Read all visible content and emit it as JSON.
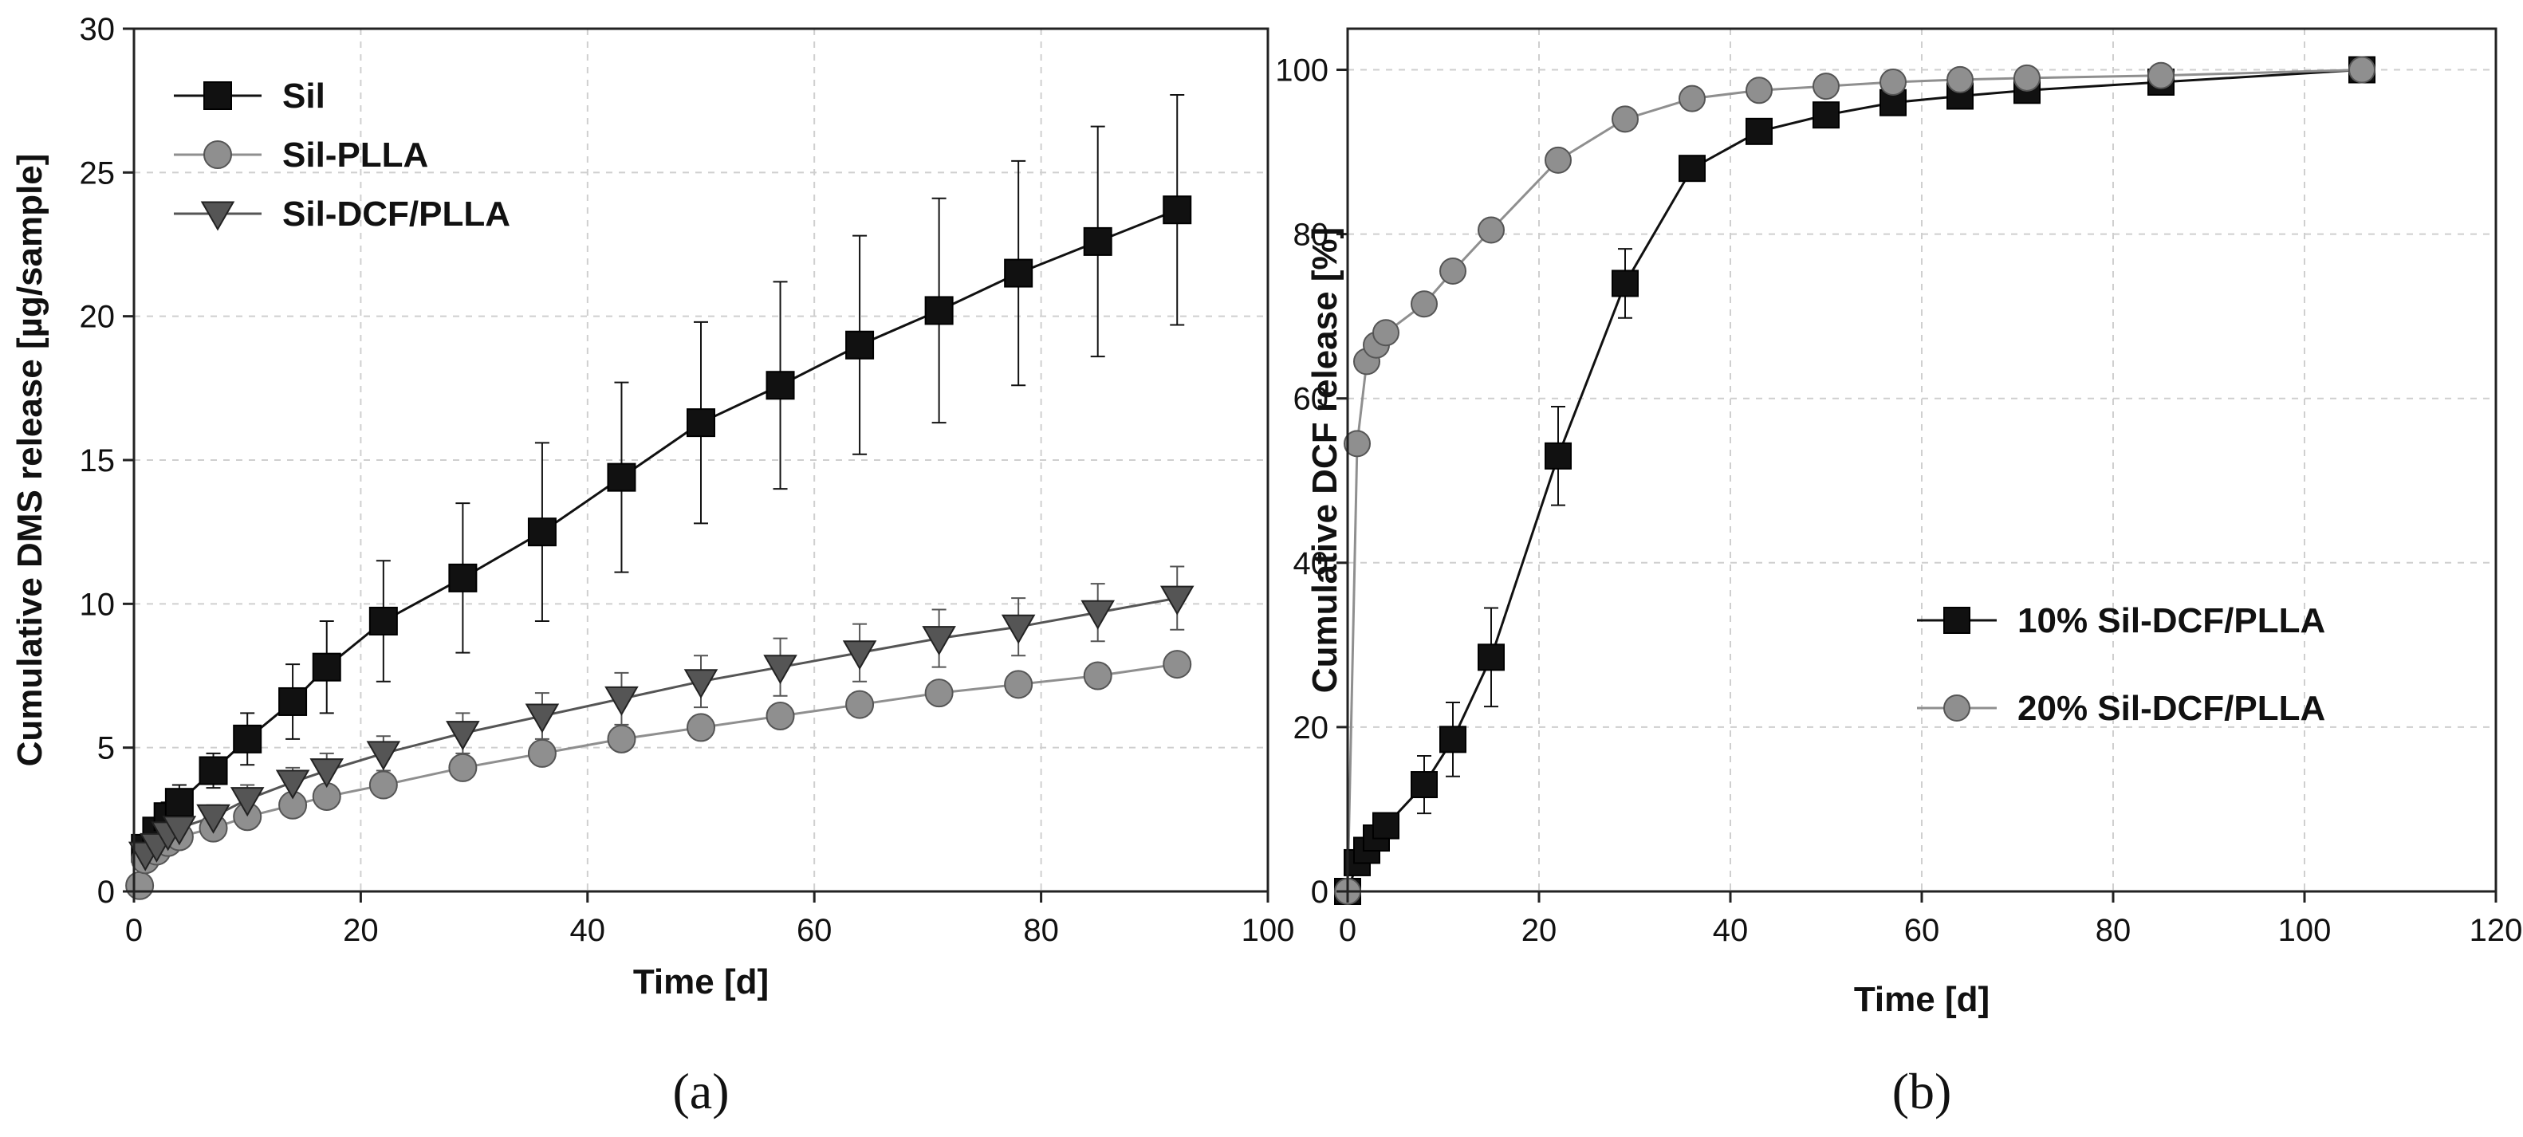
{
  "chart_data": [
    {
      "panel": "(a)",
      "type": "line",
      "xlabel": "Time [d]",
      "ylabel": "Cumulative DMS release [µg/sample]",
      "xlim": [
        0,
        100
      ],
      "ylim": [
        0,
        30
      ],
      "xticks": [
        0,
        20,
        40,
        60,
        80,
        100
      ],
      "yticks": [
        0,
        5,
        10,
        15,
        20,
        25,
        30
      ],
      "grid": true,
      "legend_position": "top-left",
      "series": [
        {
          "name": "Sil",
          "marker": "square",
          "color": "#111111",
          "x": [
            1,
            2,
            3,
            4,
            7,
            10,
            14,
            17,
            22,
            29,
            36,
            43,
            50,
            57,
            64,
            71,
            78,
            85,
            92
          ],
          "y": [
            1.5,
            2.1,
            2.6,
            3.1,
            4.2,
            5.3,
            6.6,
            7.8,
            9.4,
            10.9,
            12.5,
            14.4,
            16.3,
            17.6,
            19.0,
            20.2,
            21.5,
            22.6,
            23.7
          ],
          "err": [
            0.3,
            0.4,
            0.5,
            0.6,
            0.6,
            0.9,
            1.3,
            1.6,
            2.1,
            2.6,
            3.1,
            3.3,
            3.5,
            3.6,
            3.8,
            3.9,
            3.9,
            4.0,
            4.0
          ]
        },
        {
          "name": "Sil-PLLA",
          "marker": "circle",
          "color": "#8f8f8f",
          "x": [
            0.5,
            1,
            2,
            3,
            4,
            7,
            10,
            14,
            17,
            22,
            29,
            36,
            43,
            50,
            57,
            64,
            71,
            78,
            85,
            92
          ],
          "y": [
            0.2,
            1.1,
            1.4,
            1.7,
            1.9,
            2.2,
            2.6,
            3.0,
            3.3,
            3.7,
            4.3,
            4.8,
            5.3,
            5.7,
            6.1,
            6.5,
            6.9,
            7.2,
            7.5,
            7.9
          ],
          "err": [
            0.1,
            0.2,
            0.2,
            0.2,
            0.3,
            0.3,
            0.3,
            0.3,
            0.3,
            0.3,
            0.3,
            0.3,
            0.3,
            0.4,
            0.4,
            0.4,
            0.4,
            0.4,
            0.4,
            0.4
          ]
        },
        {
          "name": "Sil-DCF/PLLA",
          "marker": "triangle-down",
          "color": "#555555",
          "x": [
            1,
            2,
            3,
            4,
            7,
            10,
            14,
            17,
            22,
            29,
            36,
            43,
            50,
            57,
            64,
            71,
            78,
            85,
            92
          ],
          "y": [
            1.3,
            1.6,
            2.0,
            2.2,
            2.6,
            3.2,
            3.8,
            4.2,
            4.8,
            5.5,
            6.1,
            6.7,
            7.3,
            7.8,
            8.3,
            8.8,
            9.2,
            9.7,
            10.2
          ],
          "err": [
            0.2,
            0.3,
            0.3,
            0.4,
            0.4,
            0.5,
            0.5,
            0.6,
            0.6,
            0.7,
            0.8,
            0.9,
            0.9,
            1.0,
            1.0,
            1.0,
            1.0,
            1.0,
            1.1
          ]
        }
      ]
    },
    {
      "panel": "(b)",
      "type": "line",
      "xlabel": "Time [d]",
      "ylabel": "Cumulative DCF release [%]",
      "xlim": [
        0,
        120
      ],
      "ylim": [
        0,
        105
      ],
      "xticks": [
        0,
        20,
        40,
        60,
        80,
        100,
        120
      ],
      "yticks": [
        0,
        20,
        40,
        60,
        80,
        100
      ],
      "grid": true,
      "legend_position": "middle-right",
      "series": [
        {
          "name": "10% Sil-DCF/PLLA",
          "marker": "square",
          "color": "#111111",
          "x": [
            0,
            1,
            2,
            3,
            4,
            8,
            11,
            15,
            22,
            29,
            36,
            43,
            50,
            57,
            64,
            71,
            85,
            106
          ],
          "y": [
            0,
            3.5,
            5,
            6.5,
            8,
            13,
            18.5,
            28.5,
            53,
            74,
            88,
            92.5,
            94.5,
            96,
            96.8,
            97.5,
            98.5,
            100
          ],
          "err": [
            0,
            0.5,
            0.8,
            1.0,
            1.2,
            3.5,
            4.5,
            6.0,
            6.0,
            4.2,
            1.5,
            1.0,
            1.0,
            0.8,
            0.8,
            0.6,
            0.5,
            0
          ]
        },
        {
          "name": "20% Sil-DCF/PLLA",
          "marker": "circle",
          "color": "#8f8f8f",
          "x": [
            0,
            1,
            2,
            3,
            4,
            8,
            11,
            15,
            22,
            29,
            36,
            43,
            50,
            57,
            64,
            71,
            85,
            106
          ],
          "y": [
            0,
            54.5,
            64.5,
            66.5,
            68,
            71.5,
            75.5,
            80.5,
            89,
            94,
            96.5,
            97.5,
            98,
            98.5,
            98.8,
            99,
            99.3,
            100
          ],
          "err": [
            0,
            1.0,
            1.0,
            1.0,
            1.0,
            1.0,
            1.0,
            1.0,
            0.8,
            0.6,
            0.5,
            0.5,
            0.5,
            0.4,
            0.4,
            0.4,
            0.3,
            0
          ]
        }
      ]
    }
  ]
}
